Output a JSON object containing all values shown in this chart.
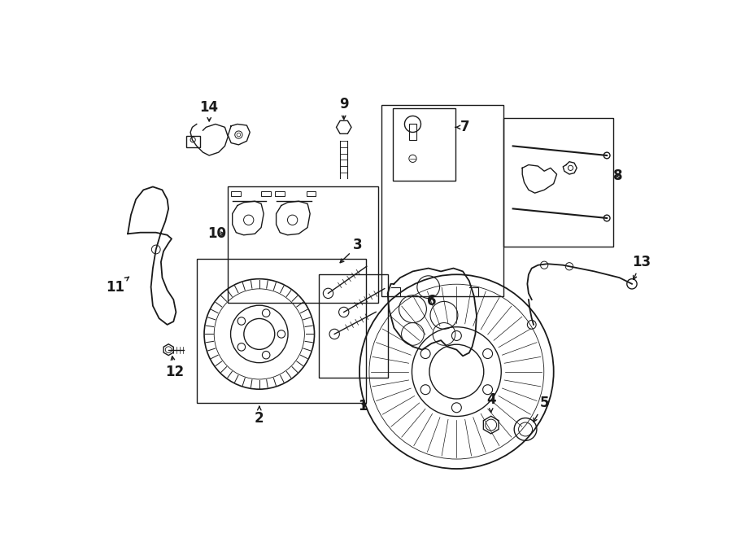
{
  "bg_color": "#ffffff",
  "line_color": "#1a1a1a",
  "fig_width": 9.0,
  "fig_height": 6.61,
  "dpi": 100,
  "lw": 1.0
}
